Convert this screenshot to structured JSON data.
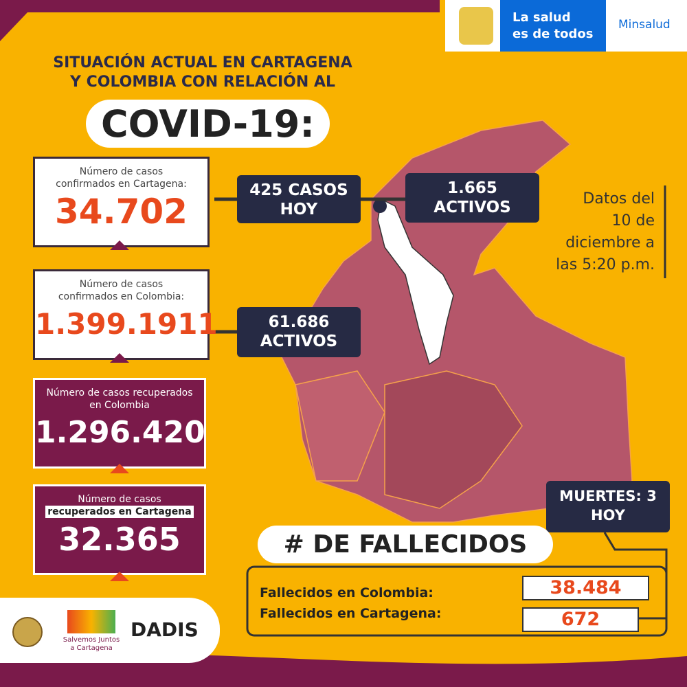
{
  "header": {
    "brand_lines": [
      "La salud",
      "es de todos"
    ],
    "ministry": "Minsalud"
  },
  "title": {
    "lines": [
      "SITUACIÓN ACTUAL EN CARTAGENA",
      "Y COLOMBIA CON RELACIÓN AL"
    ],
    "highlight": "COVID-19:"
  },
  "cards": [
    {
      "label_lines": [
        "Número de casos",
        "confirmados en Cartagena:"
      ],
      "value": "34.702"
    },
    {
      "label_lines": [
        "Número de casos",
        "confirmados en Colombia:"
      ],
      "value": "1.399.1911"
    },
    {
      "label_lines": [
        "Número de casos recuperados",
        "en Colombia"
      ],
      "value": "1.296.420"
    },
    {
      "label_lines": [
        "Número de casos",
        "recuperados en Cartagena"
      ],
      "value": "32.365"
    }
  ],
  "callouts": [
    {
      "lines": [
        "425 CASOS",
        "HOY"
      ]
    },
    {
      "lines": [
        "1.665",
        "ACTIVOS"
      ]
    },
    {
      "lines": [
        "61.686",
        "ACTIVOS"
      ]
    }
  ],
  "date_note": {
    "lines": [
      "Datos del",
      "10 de",
      "diciembre a",
      "las 5:20 p.m."
    ]
  },
  "deaths": {
    "today_lines": [
      "MUERTES: 3",
      "HOY"
    ],
    "heading": "# DE FALLECIDOS",
    "rows": [
      {
        "label": "Fallecidos en Colombia:",
        "value": "38.484"
      },
      {
        "label": "Fallecidos en Cartagena:",
        "value": "672"
      }
    ]
  },
  "footer": {
    "partner_lines": [
      "Salvemos Juntos",
      "a Cartagena"
    ],
    "agency": "DADIS"
  }
}
